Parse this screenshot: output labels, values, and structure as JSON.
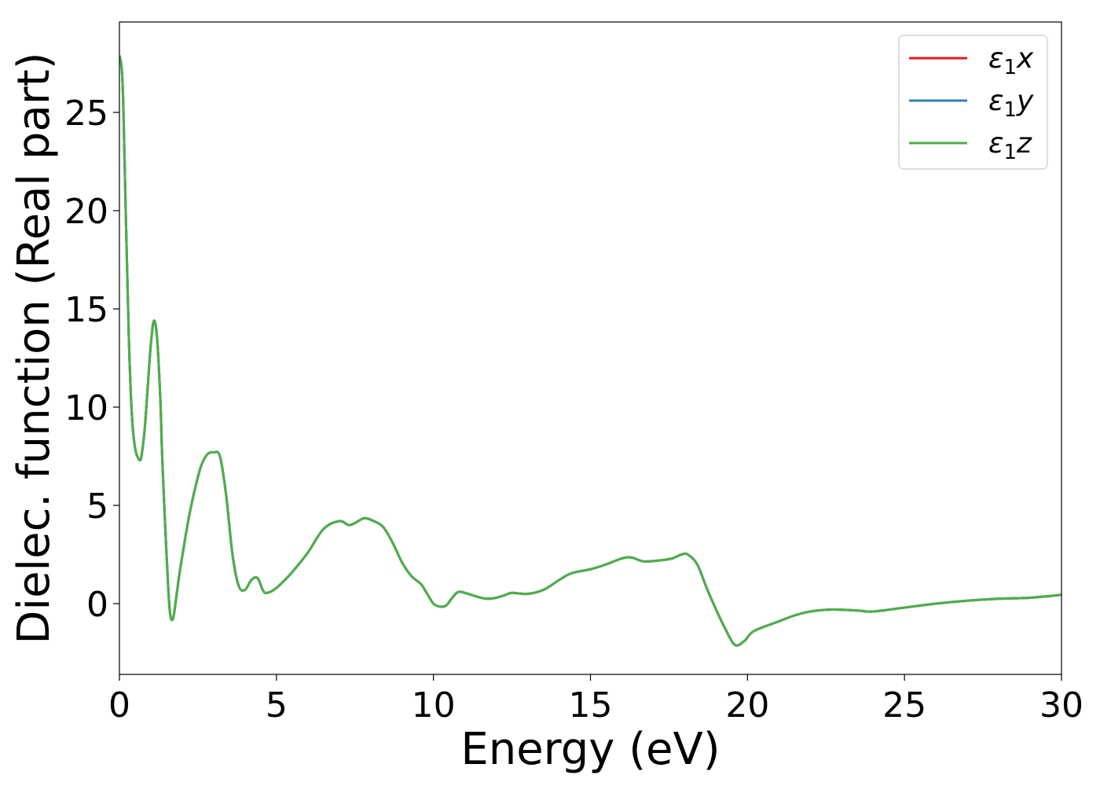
{
  "chart_data": {
    "type": "line",
    "xlabel": "Energy (eV)",
    "ylabel": "Dielec. function (Real part)",
    "xlim": [
      0,
      30
    ],
    "ylim": [
      -3.6,
      29.6
    ],
    "xticks": [
      0,
      5,
      10,
      15,
      20,
      25,
      30
    ],
    "yticks": [
      0,
      5,
      10,
      15,
      20,
      25
    ],
    "grid": false,
    "legend_position": "top-right",
    "x": [
      0.0,
      0.1,
      0.2,
      0.3,
      0.4,
      0.5,
      0.6,
      0.65,
      0.7,
      0.8,
      0.9,
      1.0,
      1.1,
      1.2,
      1.3,
      1.35,
      1.4,
      1.5,
      1.6,
      1.7,
      1.8,
      1.9,
      2.0,
      2.2,
      2.4,
      2.6,
      2.8,
      3.0,
      3.2,
      3.4,
      3.6,
      3.8,
      4.0,
      4.2,
      4.4,
      4.6,
      4.8,
      5.0,
      5.2,
      5.5,
      6.0,
      6.5,
      7.0,
      7.3,
      7.5,
      7.8,
      8.1,
      8.4,
      8.7,
      9.0,
      9.3,
      9.6,
      9.8,
      10.0,
      10.2,
      10.4,
      10.6,
      10.8,
      11.1,
      11.4,
      11.7,
      12.0,
      12.3,
      12.5,
      13.0,
      13.5,
      14.0,
      14.4,
      15.0,
      15.5,
      16.0,
      16.3,
      16.7,
      17.2,
      17.6,
      17.9,
      18.1,
      18.4,
      18.7,
      19.0,
      19.3,
      19.6,
      19.9,
      20.2,
      21.0,
      21.5,
      22.0,
      22.7,
      23.5,
      24.0,
      25.0,
      26.0,
      27.0,
      28.0,
      29.0,
      30.0
    ],
    "series": [
      {
        "name": "ε1x",
        "color": "#e41a1c",
        "values": [
          27.9,
          26.5,
          20.0,
          13.5,
          9.5,
          7.9,
          7.4,
          7.3,
          7.5,
          8.8,
          11.0,
          13.2,
          14.4,
          13.5,
          10.5,
          8.0,
          6.0,
          2.5,
          -0.3,
          -0.8,
          0.2,
          1.4,
          2.4,
          4.3,
          5.8,
          7.0,
          7.6,
          7.7,
          7.5,
          5.5,
          2.5,
          0.9,
          0.7,
          1.2,
          1.3,
          0.6,
          0.6,
          0.8,
          1.1,
          1.6,
          2.6,
          3.8,
          4.2,
          4.0,
          4.1,
          4.35,
          4.2,
          3.9,
          3.1,
          2.1,
          1.4,
          1.0,
          0.5,
          0.0,
          -0.15,
          -0.1,
          0.3,
          0.6,
          0.5,
          0.35,
          0.25,
          0.3,
          0.45,
          0.55,
          0.5,
          0.7,
          1.2,
          1.55,
          1.75,
          2.0,
          2.3,
          2.35,
          2.15,
          2.2,
          2.3,
          2.5,
          2.5,
          2.0,
          0.8,
          -0.3,
          -1.3,
          -2.1,
          -1.9,
          -1.4,
          -0.9,
          -0.6,
          -0.4,
          -0.3,
          -0.35,
          -0.4,
          -0.2,
          0.0,
          0.15,
          0.25,
          0.3,
          0.45
        ]
      },
      {
        "name": "ε1y",
        "color": "#377eb8",
        "values": [
          27.9,
          26.5,
          20.0,
          13.5,
          9.5,
          7.9,
          7.4,
          7.3,
          7.5,
          8.8,
          11.0,
          13.2,
          14.4,
          13.5,
          10.5,
          8.0,
          6.0,
          2.5,
          -0.3,
          -0.8,
          0.2,
          1.4,
          2.4,
          4.3,
          5.8,
          7.0,
          7.6,
          7.7,
          7.5,
          5.5,
          2.5,
          0.9,
          0.7,
          1.2,
          1.3,
          0.6,
          0.6,
          0.8,
          1.1,
          1.6,
          2.6,
          3.8,
          4.2,
          4.0,
          4.1,
          4.35,
          4.2,
          3.9,
          3.1,
          2.1,
          1.4,
          1.0,
          0.5,
          0.0,
          -0.15,
          -0.1,
          0.3,
          0.6,
          0.5,
          0.35,
          0.25,
          0.3,
          0.45,
          0.55,
          0.5,
          0.7,
          1.2,
          1.55,
          1.75,
          2.0,
          2.3,
          2.35,
          2.15,
          2.2,
          2.3,
          2.5,
          2.5,
          2.0,
          0.8,
          -0.3,
          -1.3,
          -2.1,
          -1.9,
          -1.4,
          -0.9,
          -0.6,
          -0.4,
          -0.3,
          -0.35,
          -0.4,
          -0.2,
          0.0,
          0.15,
          0.25,
          0.3,
          0.45
        ]
      },
      {
        "name": "ε1z",
        "color": "#4daf4a",
        "values": [
          27.9,
          26.5,
          20.0,
          13.5,
          9.5,
          7.9,
          7.4,
          7.3,
          7.5,
          8.8,
          11.0,
          13.2,
          14.4,
          13.5,
          10.5,
          8.0,
          6.0,
          2.5,
          -0.3,
          -0.8,
          0.2,
          1.4,
          2.4,
          4.3,
          5.8,
          7.0,
          7.6,
          7.7,
          7.5,
          5.5,
          2.5,
          0.9,
          0.7,
          1.2,
          1.3,
          0.6,
          0.6,
          0.8,
          1.1,
          1.6,
          2.6,
          3.8,
          4.2,
          4.0,
          4.1,
          4.35,
          4.2,
          3.9,
          3.1,
          2.1,
          1.4,
          1.0,
          0.5,
          0.0,
          -0.15,
          -0.1,
          0.3,
          0.6,
          0.5,
          0.35,
          0.25,
          0.3,
          0.45,
          0.55,
          0.5,
          0.7,
          1.2,
          1.55,
          1.75,
          2.0,
          2.3,
          2.35,
          2.15,
          2.2,
          2.3,
          2.5,
          2.5,
          2.0,
          0.8,
          -0.3,
          -1.3,
          -2.1,
          -1.9,
          -1.4,
          -0.9,
          -0.6,
          -0.4,
          -0.3,
          -0.35,
          -0.4,
          -0.2,
          0.0,
          0.15,
          0.25,
          0.3,
          0.45
        ]
      }
    ],
    "legend": [
      {
        "symbol": "ε",
        "sub": "1",
        "var": "x",
        "color": "#e41a1c"
      },
      {
        "symbol": "ε",
        "sub": "1",
        "var": "y",
        "color": "#377eb8"
      },
      {
        "symbol": "ε",
        "sub": "1",
        "var": "z",
        "color": "#4daf4a"
      }
    ]
  }
}
